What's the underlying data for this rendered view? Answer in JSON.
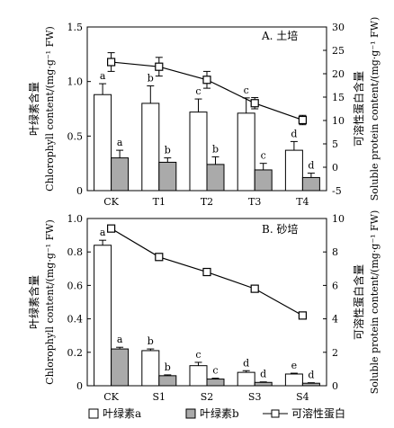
{
  "chart_data": [
    {
      "type": "bar",
      "panel_label": "A. 土培",
      "categories": [
        "CK",
        "T1",
        "T2",
        "T3",
        "T4"
      ],
      "ylabel_cn": "叶绿素含量",
      "ylabel_en": "Chlorophyll content/(mg·g⁻¹ FW)",
      "y2label_cn": "可溶性蛋白含量",
      "y2label_en": "Soluble protein content/(mg·g⁻¹ FW)",
      "ylim": [
        0,
        1.5
      ],
      "yticks": [
        "0",
        "0.5",
        "1.0",
        "1.5"
      ],
      "y2lim": [
        -5,
        30
      ],
      "y2ticks": [
        "-5",
        "0",
        "5",
        "10",
        "15",
        "20",
        "25",
        "30"
      ],
      "series": [
        {
          "name": "叶绿素a",
          "kind": "bar",
          "fill": "#ffffff",
          "values": [
            0.88,
            0.8,
            0.72,
            0.71,
            0.37
          ],
          "errors": [
            0.1,
            0.16,
            0.12,
            0.14,
            0.08
          ],
          "labels": [
            "a",
            "b",
            "c",
            "c",
            "d"
          ]
        },
        {
          "name": "叶绿素b",
          "kind": "bar",
          "fill": "#aaaaaa",
          "values": [
            0.3,
            0.26,
            0.24,
            0.19,
            0.12
          ],
          "errors": [
            0.07,
            0.04,
            0.07,
            0.06,
            0.04
          ],
          "labels": [
            "a",
            "b",
            "b",
            "c",
            "d"
          ]
        },
        {
          "name": "可溶性蛋白",
          "kind": "line",
          "axis": "right",
          "values": [
            22.5,
            21.5,
            18.7,
            13.7,
            10.1
          ],
          "errors": [
            2.0,
            2.0,
            1.8,
            1.2,
            1.0
          ]
        }
      ]
    },
    {
      "type": "bar",
      "panel_label": "B. 砂培",
      "categories": [
        "CK",
        "S1",
        "S2",
        "S3",
        "S4"
      ],
      "ylabel_cn": "叶绿素含量",
      "ylabel_en": "Chlorophyll content/(mg·g⁻¹ FW)",
      "y2label_cn": "可溶性蛋白含量",
      "y2label_en": "Soluble protein content/(mg·g⁻¹ FW)",
      "ylim": [
        0,
        1.0
      ],
      "yticks": [
        "0",
        "0.2",
        "0.4",
        "0.6",
        "0.8",
        "1.0"
      ],
      "y2lim": [
        0,
        10
      ],
      "y2ticks": [
        "0",
        "2",
        "4",
        "6",
        "8",
        "10"
      ],
      "series": [
        {
          "name": "叶绿素a",
          "kind": "bar",
          "fill": "#ffffff",
          "values": [
            0.84,
            0.21,
            0.12,
            0.08,
            0.07
          ],
          "errors": [
            0.03,
            0.01,
            0.02,
            0.01,
            0.005
          ],
          "labels": [
            "a",
            "b",
            "c",
            "d",
            "e"
          ]
        },
        {
          "name": "叶绿素b",
          "kind": "bar",
          "fill": "#aaaaaa",
          "values": [
            0.22,
            0.06,
            0.04,
            0.02,
            0.015
          ],
          "errors": [
            0.01,
            0.005,
            0.005,
            0.003,
            0.003
          ],
          "labels": [
            "a",
            "b",
            "c",
            "d",
            "d"
          ]
        },
        {
          "name": "可溶性蛋白",
          "kind": "line",
          "axis": "right",
          "values": [
            9.4,
            7.7,
            6.8,
            5.8,
            4.2
          ],
          "errors": [
            0.15,
            0.2,
            0.15,
            0.15,
            0.2
          ]
        }
      ]
    }
  ],
  "legend": {
    "items": [
      {
        "label": "叶绿素a",
        "kind": "box-white"
      },
      {
        "label": "叶绿素b",
        "kind": "box-gray"
      },
      {
        "label": "可溶性蛋白",
        "kind": "line-square"
      }
    ]
  }
}
